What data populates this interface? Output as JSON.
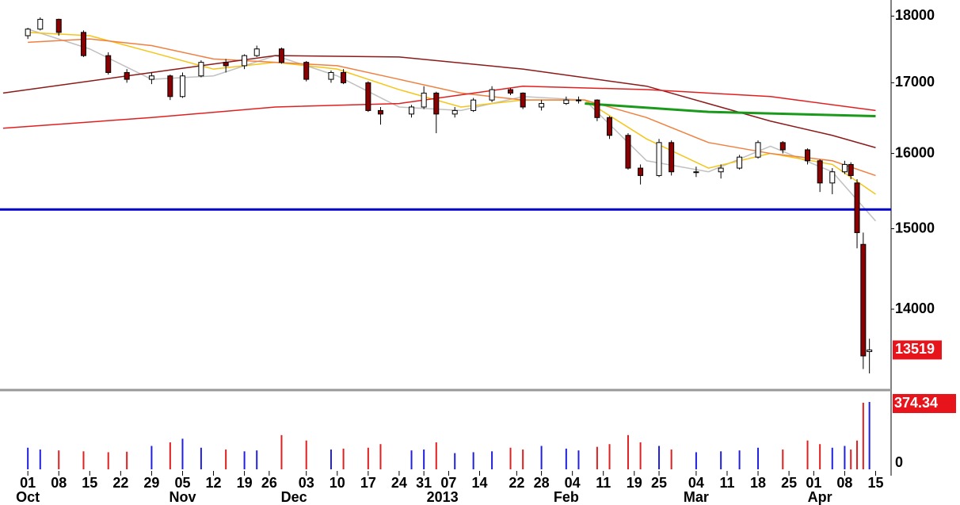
{
  "chart_data": {
    "type": "candlestick",
    "log_scale": true,
    "ylim": [
      13080,
      18250
    ],
    "yticks": [
      14000,
      15000,
      16000,
      17000,
      18000
    ],
    "xlim": [
      -4.5,
      139.5
    ],
    "xticks": [
      {
        "value": 0,
        "label": "01"
      },
      {
        "value": 5,
        "label": "08"
      },
      {
        "value": 10,
        "label": "15"
      },
      {
        "value": 15,
        "label": "22"
      },
      {
        "value": 20,
        "label": "29"
      },
      {
        "value": 25,
        "label": "05"
      },
      {
        "value": 30,
        "label": "12"
      },
      {
        "value": 35,
        "label": "19"
      },
      {
        "value": 39,
        "label": "26"
      },
      {
        "value": 45,
        "label": "03"
      },
      {
        "value": 50,
        "label": "10"
      },
      {
        "value": 55,
        "label": "17"
      },
      {
        "value": 60,
        "label": "24"
      },
      {
        "value": 64,
        "label": "31"
      },
      {
        "value": 68,
        "label": "07"
      },
      {
        "value": 73,
        "label": "14"
      },
      {
        "value": 79,
        "label": "22"
      },
      {
        "value": 83,
        "label": "28"
      },
      {
        "value": 88,
        "label": "04"
      },
      {
        "value": 93,
        "label": "11"
      },
      {
        "value": 98,
        "label": "19"
      },
      {
        "value": 102,
        "label": "25"
      },
      {
        "value": 108,
        "label": "04"
      },
      {
        "value": 113,
        "label": "11"
      },
      {
        "value": 118,
        "label": "18"
      },
      {
        "value": 123,
        "label": "25"
      },
      {
        "value": 127,
        "label": "01"
      },
      {
        "value": 132,
        "label": "08"
      },
      {
        "value": 137,
        "label": "15"
      }
    ],
    "xgroups": [
      {
        "value": 0,
        "label": "Oct"
      },
      {
        "value": 25,
        "label": "Nov"
      },
      {
        "value": 43,
        "label": "Dec"
      },
      {
        "value": 67,
        "label": "2013"
      },
      {
        "value": 87,
        "label": "Feb"
      },
      {
        "value": 108,
        "label": "Mar"
      },
      {
        "value": 128,
        "label": "Apr"
      }
    ],
    "up_color": "#ffffff",
    "down_color": "#8b0000",
    "x": [
      0,
      2,
      5,
      9,
      13,
      16,
      20,
      23,
      25,
      28,
      32,
      35,
      37,
      41,
      45,
      49,
      51,
      55,
      57,
      62,
      64,
      66,
      69,
      72,
      75,
      78,
      80,
      83,
      87,
      89,
      92,
      94,
      97,
      99,
      102,
      104,
      108,
      112,
      115,
      118,
      122,
      126,
      128,
      130,
      132,
      133,
      134,
      135,
      136
    ],
    "open": [
      17700,
      17800,
      17950,
      17750,
      17400,
      17150,
      17050,
      17100,
      16800,
      17100,
      17300,
      17250,
      17400,
      17500,
      17300,
      17050,
      17150,
      17000,
      16600,
      16550,
      16650,
      16850,
      16550,
      16600,
      16750,
      16900,
      16850,
      16650,
      16700,
      16750,
      16750,
      16500,
      16250,
      15800,
      15700,
      16150,
      15750,
      15750,
      15800,
      15950,
      16150,
      16050,
      15900,
      15600,
      15750,
      15850,
      15600,
      14800,
      13500
    ],
    "high": [
      17820,
      17980,
      17960,
      17780,
      17450,
      17200,
      17150,
      17120,
      17150,
      17330,
      17350,
      17420,
      17550,
      17520,
      17320,
      17180,
      17200,
      17020,
      16650,
      16680,
      16950,
      16870,
      16650,
      16780,
      16950,
      16920,
      16860,
      16750,
      16800,
      16800,
      16760,
      16520,
      16280,
      15850,
      16200,
      16180,
      15820,
      15850,
      15980,
      16180,
      16170,
      16070,
      15920,
      15800,
      15900,
      15880,
      15650,
      14950,
      13650
    ],
    "low": [
      17650,
      17780,
      17700,
      17380,
      17120,
      17000,
      16980,
      16750,
      16780,
      17080,
      17150,
      17200,
      17380,
      17280,
      17020,
      17000,
      16980,
      16580,
      16400,
      16500,
      16620,
      16280,
      16500,
      16580,
      16720,
      16820,
      16620,
      16600,
      16680,
      16700,
      16450,
      16200,
      15780,
      15580,
      15680,
      15700,
      15680,
      15660,
      15780,
      15930,
      16000,
      15850,
      15480,
      15450,
      15720,
      15650,
      14750,
      13300,
      13250
    ],
    "close": [
      17800,
      17950,
      17750,
      17400,
      17150,
      17050,
      17100,
      16800,
      17100,
      17300,
      17250,
      17400,
      17500,
      17300,
      17050,
      17150,
      17000,
      16600,
      16550,
      16650,
      16850,
      16550,
      16600,
      16750,
      16900,
      16850,
      16650,
      16700,
      16750,
      16750,
      16500,
      16250,
      15800,
      15700,
      16150,
      15750,
      15750,
      15800,
      15950,
      16150,
      16050,
      15900,
      15600,
      15750,
      15850,
      15700,
      14950,
      13450,
      13519
    ],
    "volume": [
      120,
      110,
      105,
      100,
      95,
      98,
      130,
      150,
      170,
      120,
      110,
      100,
      105,
      190,
      160,
      110,
      115,
      120,
      140,
      105,
      110,
      150,
      90,
      95,
      100,
      120,
      110,
      130,
      115,
      105,
      125,
      140,
      190,
      150,
      130,
      110,
      95,
      100,
      105,
      120,
      110,
      160,
      140,
      120,
      130,
      110,
      160,
      370,
      374.34
    ],
    "vlim": [
      0,
      374.34
    ],
    "vticks": [
      0,
      374.34
    ],
    "hline": 15250,
    "hline_color": "#0000cc",
    "lines": [
      {
        "color": "#c0c0c0",
        "x": [
          0,
          10,
          20,
          30,
          40,
          50,
          60,
          70,
          80,
          90,
          100,
          110,
          120,
          130,
          137
        ],
        "values": [
          17800,
          17500,
          17050,
          17100,
          17400,
          17100,
          16650,
          16600,
          16800,
          16750,
          15900,
          15750,
          16100,
          15750,
          15100
        ]
      },
      {
        "color": "#f5c518",
        "x": [
          0,
          10,
          20,
          30,
          40,
          50,
          60,
          70,
          80,
          90,
          100,
          110,
          120,
          130,
          137
        ],
        "values": [
          17750,
          17700,
          17450,
          17200,
          17300,
          17200,
          16900,
          16650,
          16750,
          16750,
          16200,
          15800,
          16000,
          15850,
          15450
        ]
      },
      {
        "color": "#f08040",
        "x": [
          0,
          10,
          20,
          30,
          40,
          50,
          60,
          70,
          80,
          90,
          100,
          110,
          120,
          130,
          137
        ],
        "values": [
          17600,
          17650,
          17550,
          17350,
          17300,
          17250,
          17050,
          16850,
          16750,
          16750,
          16500,
          16150,
          16000,
          15900,
          15700
        ]
      },
      {
        "color": "#8b1a1a",
        "x": [
          -4,
          20,
          40,
          60,
          80,
          100,
          120,
          130,
          137
        ],
        "values": [
          16850,
          17150,
          17400,
          17380,
          17200,
          16950,
          16450,
          16250,
          16080
        ]
      },
      {
        "color": "#e02020",
        "x": [
          -4,
          20,
          40,
          60,
          80,
          100,
          120,
          137
        ],
        "values": [
          16350,
          16500,
          16650,
          16700,
          16950,
          16900,
          16800,
          16600
        ]
      },
      {
        "color": "#1a9a1a",
        "x": [
          90,
          110,
          137
        ],
        "values": [
          16700,
          16580,
          16520
        ]
      }
    ]
  }
}
